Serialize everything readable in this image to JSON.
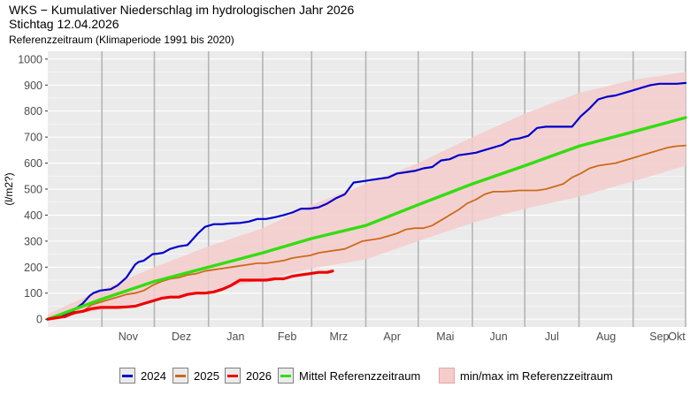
{
  "header": {
    "title": "WKS − Kumulativer Niederschlag im hydrologischen Jahr 2026",
    "subtitle": "Stichtag  12.04.2026",
    "caption": "Referenzzeitraum (Klimaperiode 1991 bis 2020)"
  },
  "chart_data": {
    "type": "line",
    "ylabel": "(l/m2?)",
    "ylim": [
      -30,
      1030
    ],
    "xlim_days": [
      0,
      365
    ],
    "yticks": [
      0,
      100,
      200,
      300,
      400,
      500,
      600,
      700,
      800,
      900,
      1000
    ],
    "month_labels": [
      "Nov",
      "Dez",
      "Jan",
      "Feb",
      "Mrz",
      "Apr",
      "Mai",
      "Jun",
      "Jul",
      "Aug",
      "Sep",
      "Okt"
    ],
    "grid": true,
    "legend_position": "bottom",
    "colors": {
      "2024": "#0000cc",
      "2025": "#cc6a1a",
      "2026": "#ee0000",
      "mean": "#33dd11",
      "band_fill": "#f4cccc",
      "panel": "#ebebeb"
    },
    "series": [
      {
        "name": "2024",
        "key": "2024",
        "x": [
          0,
          8,
          14,
          20,
          24,
          26,
          30,
          36,
          40,
          45,
          50,
          52,
          55,
          60,
          63,
          66,
          70,
          75,
          80,
          82,
          86,
          90,
          95,
          100,
          104,
          110,
          115,
          120,
          125,
          130,
          135,
          140,
          145,
          150,
          155,
          160,
          165,
          170,
          175,
          180,
          185,
          190,
          195,
          200,
          205,
          210,
          215,
          220,
          225,
          230,
          235,
          240,
          245,
          250,
          255,
          260,
          265,
          270,
          275,
          280,
          285,
          290,
          295,
          300,
          305,
          310,
          315,
          320,
          325,
          330,
          335,
          340,
          345,
          350,
          355,
          360,
          365
        ],
        "values": [
          0,
          15,
          30,
          60,
          90,
          100,
          110,
          115,
          130,
          160,
          210,
          220,
          225,
          250,
          252,
          255,
          270,
          280,
          285,
          300,
          330,
          355,
          365,
          365,
          368,
          370,
          375,
          385,
          385,
          392,
          400,
          410,
          425,
          425,
          430,
          445,
          465,
          480,
          525,
          530,
          535,
          540,
          545,
          560,
          565,
          570,
          580,
          585,
          610,
          615,
          630,
          635,
          640,
          650,
          660,
          670,
          690,
          695,
          705,
          735,
          740,
          740,
          740,
          740,
          780,
          810,
          845,
          855,
          860,
          870,
          880,
          890,
          900,
          905,
          905,
          905,
          908
        ]
      },
      {
        "name": "2025",
        "key": "2025",
        "x": [
          0,
          10,
          20,
          25,
          30,
          35,
          40,
          45,
          50,
          55,
          60,
          65,
          70,
          75,
          80,
          85,
          90,
          95,
          100,
          105,
          110,
          115,
          120,
          125,
          130,
          135,
          140,
          145,
          150,
          155,
          160,
          165,
          170,
          175,
          180,
          185,
          190,
          195,
          200,
          205,
          210,
          215,
          220,
          225,
          230,
          235,
          240,
          245,
          250,
          255,
          260,
          265,
          270,
          275,
          280,
          285,
          290,
          295,
          300,
          305,
          310,
          315,
          320,
          325,
          330,
          335,
          340,
          345,
          350,
          355,
          360,
          365
        ],
        "values": [
          0,
          10,
          30,
          55,
          65,
          75,
          85,
          95,
          100,
          110,
          130,
          145,
          155,
          160,
          170,
          175,
          185,
          190,
          195,
          200,
          205,
          210,
          215,
          215,
          220,
          225,
          235,
          240,
          245,
          255,
          260,
          265,
          270,
          285,
          300,
          305,
          310,
          320,
          330,
          345,
          350,
          350,
          360,
          380,
          400,
          420,
          445,
          460,
          480,
          490,
          490,
          492,
          495,
          495,
          495,
          500,
          510,
          520,
          545,
          560,
          580,
          590,
          595,
          600,
          610,
          620,
          630,
          640,
          650,
          660,
          665,
          668
        ]
      },
      {
        "name": "2026",
        "key": "2026",
        "x": [
          0,
          5,
          10,
          15,
          20,
          25,
          30,
          35,
          40,
          45,
          50,
          55,
          60,
          65,
          70,
          75,
          80,
          85,
          90,
          95,
          100,
          105,
          110,
          115,
          120,
          125,
          130,
          135,
          140,
          145,
          150,
          155,
          160,
          163
        ],
        "values": [
          0,
          5,
          10,
          25,
          30,
          40,
          45,
          45,
          45,
          47,
          50,
          60,
          70,
          80,
          85,
          85,
          95,
          100,
          100,
          105,
          115,
          130,
          150,
          150,
          150,
          150,
          155,
          155,
          165,
          170,
          175,
          180,
          180,
          185
        ]
      },
      {
        "name": "Mittel Referenzzeitraum",
        "key": "mean",
        "x": [
          0,
          30,
          61,
          92,
          123,
          151,
          182,
          212,
          243,
          273,
          304,
          335,
          365
        ],
        "values": [
          0,
          75,
          145,
          200,
          255,
          310,
          360,
          440,
          520,
          590,
          665,
          720,
          775
        ]
      }
    ],
    "band": {
      "name": "min/max im Referenzzeitraum",
      "x": [
        0,
        30,
        61,
        92,
        123,
        151,
        182,
        212,
        243,
        273,
        304,
        335,
        365
      ],
      "min": [
        0,
        35,
        75,
        110,
        150,
        195,
        230,
        300,
        370,
        425,
        470,
        530,
        590
      ],
      "max": [
        20,
        110,
        200,
        280,
        350,
        440,
        520,
        600,
        700,
        790,
        870,
        920,
        950
      ]
    }
  }
}
